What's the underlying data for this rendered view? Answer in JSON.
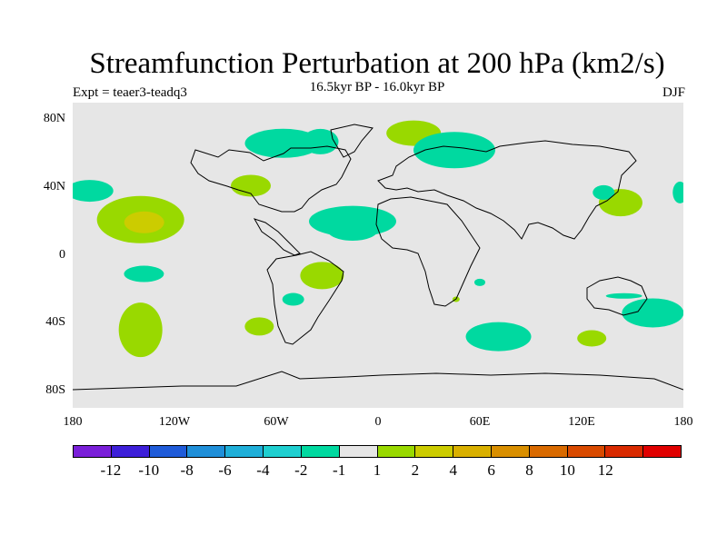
{
  "title": "Streamfunction Perturbation at 200 hPa (km2/s)",
  "subtitle": "16.5kyr BP - 16.0kyr BP",
  "left_label": "Expt = teaer3-teadq3",
  "right_label": "DJF",
  "map": {
    "projection": "cylindrical-equidistant",
    "lon_range": [
      -180,
      180
    ],
    "lat_range": [
      -90,
      90
    ],
    "background": "#e6e6e6",
    "lat_ticks": [
      "80N",
      "40N",
      "0",
      "40S",
      "80S"
    ],
    "lon_ticks": [
      "180",
      "120W",
      "60W",
      "0",
      "60E",
      "120E",
      "180"
    ]
  },
  "anomalies": [
    {
      "name": "north-america-high",
      "level": "-1",
      "color": "#00d9a0",
      "lon": -56,
      "lat": 66
    },
    {
      "name": "greenland-blob",
      "level": "-1",
      "color": "#00d9a0",
      "lon": -34,
      "lat": 67
    },
    {
      "name": "scandinavia-blob",
      "level": "1",
      "color": "#99d900",
      "lon": 21,
      "lat": 72
    },
    {
      "name": "eurasia-blob",
      "level": "-1",
      "color": "#00d9a0",
      "lon": 45,
      "lat": 62
    },
    {
      "name": "atlantic-low",
      "level": "1",
      "color": "#99d900",
      "lon": -75,
      "lat": 41
    },
    {
      "name": "west-pacific-edge",
      "level": "-1",
      "color": "#00d9a0",
      "lon": -170,
      "lat": 38
    },
    {
      "name": "east-pacific-positive",
      "level": "2",
      "color": "#cccc00",
      "lon": -140,
      "lat": 21
    },
    {
      "name": "atlantic-equatorial",
      "level": "-1",
      "color": "#00d9a0",
      "lon": -15,
      "lat": 20
    },
    {
      "name": "africa-west",
      "level": "-1",
      "color": "#00d9a0",
      "lon": -15,
      "lat": 15
    },
    {
      "name": "japan-positive",
      "level": "1",
      "color": "#99d900",
      "lon": 143,
      "lat": 31
    },
    {
      "name": "japan-negative",
      "level": "-1",
      "color": "#00d9a0",
      "lon": 133,
      "lat": 37
    },
    {
      "name": "pacific-edge-east",
      "level": "-1",
      "color": "#00d9a0",
      "lon": 178,
      "lat": 37
    },
    {
      "name": "south-pacific-1",
      "level": "-1",
      "color": "#00d9a0",
      "lon": -138,
      "lat": -11
    },
    {
      "name": "south-america-positive",
      "level": "1",
      "color": "#99d900",
      "lon": -33,
      "lat": -12
    },
    {
      "name": "argentina-negative",
      "level": "-1",
      "color": "#00d9a0",
      "lon": -50,
      "lat": -26
    },
    {
      "name": "south-pacific-positive",
      "level": "1",
      "color": "#99d900",
      "lon": -140,
      "lat": -44
    },
    {
      "name": "patagonia-positive",
      "level": "1",
      "color": "#99d900",
      "lon": -70,
      "lat": -42
    },
    {
      "name": "madagascar-small",
      "level": "1",
      "color": "#99d900",
      "lon": 46,
      "lat": -26
    },
    {
      "name": "madagascar-negative",
      "level": "-1",
      "color": "#00d9a0",
      "lon": 60,
      "lat": -16
    },
    {
      "name": "indian-ocean-negative",
      "level": "-1",
      "color": "#00d9a0",
      "lon": 71,
      "lat": -48
    },
    {
      "name": "south-indian-positive",
      "level": "1",
      "color": "#99d900",
      "lon": 126,
      "lat": -49
    },
    {
      "name": "australia-southeast",
      "level": "-1",
      "color": "#00d9a0",
      "lon": 162,
      "lat": -34
    },
    {
      "name": "australia-north",
      "level": "-1",
      "color": "#00d9a0",
      "lon": 145,
      "lat": -24
    }
  ],
  "colorbar": {
    "colors": [
      "#7a1fd9",
      "#3d1fd9",
      "#1f5bd9",
      "#1f8fd9",
      "#1fafd9",
      "#1fcfd0",
      "#00d9a0",
      "#e6e6e6",
      "#99d900",
      "#cccc00",
      "#d9b000",
      "#d98f00",
      "#d96a00",
      "#d94a00",
      "#d92a00",
      "#e00000"
    ],
    "labels": [
      "-12",
      "-10",
      "-8",
      "-6",
      "-4",
      "-2",
      "-1",
      "1",
      "2",
      "4",
      "6",
      "8",
      "10",
      "12"
    ]
  }
}
